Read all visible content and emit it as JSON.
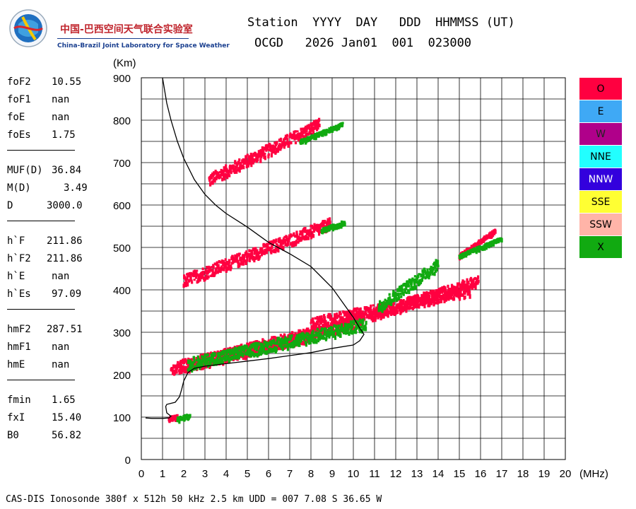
{
  "logo": {
    "title_cn": "中国-巴西空间天气联合实验室",
    "title_en": "China-Brazil Joint Laboratory for Space Weather"
  },
  "header": {
    "line1": "Station  YYYY  DAY   DDD  HHMMSS (UT)",
    "line2": "OCGD   2026 Jan01  001  023000"
  },
  "params": [
    {
      "key": "foF2",
      "value": "10.55"
    },
    {
      "key": "foF1",
      "value": "nan"
    },
    {
      "key": "foE",
      "value": "nan"
    },
    {
      "key": "foEs",
      "value": "1.75"
    },
    {
      "key": "MUF(D)",
      "value": "36.84"
    },
    {
      "key": "M(D)",
      "value": "3.49"
    },
    {
      "key": "D",
      "value": "3000.0"
    },
    {
      "key": "h`F",
      "value": "211.86"
    },
    {
      "key": "h`F2",
      "value": "211.86"
    },
    {
      "key": "h`E",
      "value": "nan"
    },
    {
      "key": "h`Es",
      "value": "97.09"
    },
    {
      "key": "hmF2",
      "value": "287.51"
    },
    {
      "key": "hmF1",
      "value": "nan"
    },
    {
      "key": "hmE",
      "value": "nan"
    },
    {
      "key": "fmin",
      "value": "1.65"
    },
    {
      "key": "fxI",
      "value": "15.40"
    },
    {
      "key": "B0",
      "value": "56.82"
    }
  ],
  "legend": [
    {
      "label": "O",
      "color": "#ff0040"
    },
    {
      "label": "E",
      "color": "#3fa9f5"
    },
    {
      "label": "W",
      "color": "#b0008a"
    },
    {
      "label": "NNE",
      "color": "#22ffff"
    },
    {
      "label": "NNW",
      "color": "#3300dd"
    },
    {
      "label": "SSE",
      "color": "#ffff33"
    },
    {
      "label": "SSW",
      "color": "#ffb4a8"
    },
    {
      "label": "X",
      "color": "#11aa11"
    }
  ],
  "footer": "CAS-DIS Ionosonde 380f x 512h 50 kHz 2.5 km UDD = 007 7.08 S 36.65 W",
  "chart_data": {
    "type": "scatter",
    "xlabel": "(MHz)",
    "ylabel": "(Km)",
    "xlim": [
      0,
      20
    ],
    "ylim": [
      0,
      900
    ],
    "xticks": [
      "0",
      "1",
      "2",
      "3",
      "4",
      "5",
      "6",
      "7",
      "8",
      "9",
      "10",
      "11",
      "12",
      "13",
      "14",
      "15",
      "16",
      "17",
      "18",
      "19",
      "20"
    ],
    "yticks": [
      "0",
      "100",
      "200",
      "300",
      "400",
      "500",
      "600",
      "700",
      "800",
      "900"
    ],
    "grid": true,
    "colors": {
      "o_trace": "#ff0040",
      "x_trace": "#11aa11",
      "profile": "#000000"
    },
    "profile": {
      "name": "",
      "points": [
        [
          1.0,
          900
        ],
        [
          1.1,
          870
        ],
        [
          1.2,
          840
        ],
        [
          1.4,
          800
        ],
        [
          1.7,
          750
        ],
        [
          2.0,
          710
        ],
        [
          2.5,
          660
        ],
        [
          3.0,
          625
        ],
        [
          3.5,
          600
        ],
        [
          4.0,
          580
        ],
        [
          5.0,
          548
        ],
        [
          6.0,
          512
        ],
        [
          7.0,
          485
        ],
        [
          8.0,
          455
        ],
        [
          8.5,
          430
        ],
        [
          9.0,
          405
        ],
        [
          9.5,
          370
        ],
        [
          10.0,
          335
        ],
        [
          10.3,
          310
        ],
        [
          10.5,
          295
        ],
        [
          10.3,
          280
        ],
        [
          10.0,
          270
        ],
        [
          9.0,
          262
        ],
        [
          8.0,
          252
        ],
        [
          7.0,
          245
        ],
        [
          6.0,
          238
        ],
        [
          5.0,
          232
        ],
        [
          4.0,
          226
        ],
        [
          3.0,
          220
        ],
        [
          2.5,
          215
        ],
        [
          2.2,
          205
        ],
        [
          2.0,
          185
        ],
        [
          1.9,
          165
        ],
        [
          1.8,
          148
        ],
        [
          1.6,
          135
        ],
        [
          1.2,
          130
        ],
        [
          1.15,
          125
        ],
        [
          1.2,
          110
        ],
        [
          1.4,
          102
        ],
        [
          1.3,
          98
        ],
        [
          1.0,
          97
        ],
        [
          0.5,
          97
        ],
        [
          0.2,
          98
        ]
      ]
    },
    "series": [
      {
        "name": "O",
        "color": "#ff0040",
        "segments": [
          {
            "x": [
              3.2,
              8.4
            ],
            "y": [
              660,
              790
            ]
          },
          {
            "x": [
              2.0,
              8.9
            ],
            "y": [
              422,
              555
            ]
          },
          {
            "x": [
              1.4,
              8.5
            ],
            "y": [
              212,
              300
            ]
          },
          {
            "x": [
              1.8,
              10.5
            ],
            "y": [
              220,
              330
            ]
          },
          {
            "x": [
              8.0,
              15.5
            ],
            "y": [
              320,
              400
            ]
          },
          {
            "x": [
              10.8,
              15.9
            ],
            "y": [
              340,
              420
            ]
          },
          {
            "x": [
              15.0,
              16.7
            ],
            "y": [
              480,
              540
            ]
          },
          {
            "x": [
              1.3,
              1.7
            ],
            "y": [
              96,
              102
            ]
          }
        ]
      },
      {
        "name": "X",
        "color": "#11aa11",
        "segments": [
          {
            "x": [
              7.5,
              9.5
            ],
            "y": [
              750,
              790
            ]
          },
          {
            "x": [
              8.5,
              9.6
            ],
            "y": [
              540,
              560
            ]
          },
          {
            "x": [
              2.2,
              10.6
            ],
            "y": [
              225,
              320
            ]
          },
          {
            "x": [
              11.2,
              14.0
            ],
            "y": [
              360,
              460
            ]
          },
          {
            "x": [
              15.0,
              17.0
            ],
            "y": [
              480,
              520
            ]
          },
          {
            "x": [
              1.7,
              2.3
            ],
            "y": [
              95,
              104
            ]
          }
        ]
      }
    ]
  }
}
